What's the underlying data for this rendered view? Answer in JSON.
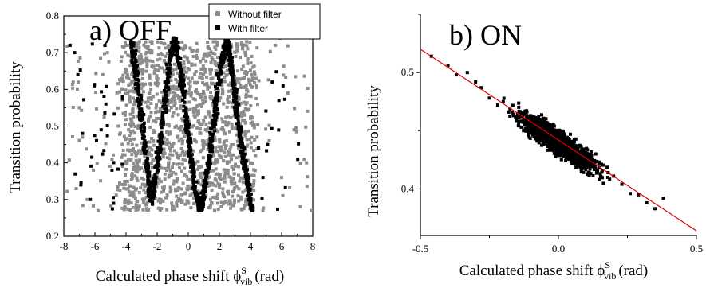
{
  "chart_data": [
    {
      "type": "scatter",
      "panel_label": "a) OFF",
      "xlabel": "Calculated phase shift ϕ",
      "xlabel_sup": "S",
      "xlabel_sub": "vib",
      "xlabel_unit": "(rad)",
      "ylabel": "Transition probability",
      "xlim": [
        -8,
        8
      ],
      "ylim": [
        0.2,
        0.8
      ],
      "xticks": [
        "-8",
        "-6",
        "-4",
        "-2",
        "0",
        "2",
        "4",
        "6",
        "8"
      ],
      "yticks": [
        "0.2",
        "0.3",
        "0.4",
        "0.5",
        "0.6",
        "0.7",
        "0.8"
      ],
      "legend_position": "top-right",
      "series": [
        {
          "name": "Without filter",
          "color": "#8c8c8c",
          "marker": "square",
          "description_points": [
            [
              -7.6,
              0.72
            ],
            [
              -7.4,
              0.62
            ],
            [
              -7.0,
              0.55
            ],
            [
              -6.8,
              0.47
            ],
            [
              -7.2,
              0.33
            ],
            [
              -6.5,
              0.3
            ],
            [
              -6.1,
              0.38
            ],
            [
              -5.8,
              0.27
            ],
            [
              -5.5,
              0.64
            ],
            [
              -5.2,
              0.7
            ],
            [
              -4.9,
              0.41
            ],
            [
              -4.5,
              0.5
            ],
            [
              -4.2,
              0.6
            ],
            [
              -3.9,
              0.35
            ],
            [
              -3.6,
              0.45
            ],
            [
              -3.2,
              0.55
            ],
            [
              -2.8,
              0.68
            ],
            [
              -2.4,
              0.32
            ],
            [
              -2.0,
              0.42
            ],
            [
              -1.6,
              0.58
            ],
            [
              -1.2,
              0.71
            ],
            [
              -0.8,
              0.37
            ],
            [
              -0.4,
              0.52
            ],
            [
              0.0,
              0.63
            ],
            [
              0.4,
              0.29
            ],
            [
              0.8,
              0.48
            ],
            [
              1.2,
              0.69
            ],
            [
              1.6,
              0.34
            ],
            [
              2.0,
              0.57
            ],
            [
              2.4,
              0.44
            ],
            [
              2.8,
              0.66
            ],
            [
              3.2,
              0.31
            ],
            [
              3.6,
              0.53
            ],
            [
              4.0,
              0.4
            ],
            [
              4.4,
              0.61
            ],
            [
              4.8,
              0.27
            ],
            [
              5.2,
              0.46
            ],
            [
              5.6,
              0.72
            ],
            [
              6.0,
              0.36
            ],
            [
              6.4,
              0.59
            ],
            [
              6.8,
              0.49
            ],
            [
              7.2,
              0.28
            ],
            [
              7.6,
              0.4
            ],
            [
              7.9,
              0.27
            ]
          ]
        },
        {
          "name": "With filter",
          "color": "#000000",
          "marker": "square",
          "description_points": [
            [
              -7.6,
              0.72
            ],
            [
              -7.1,
              0.64
            ],
            [
              -6.8,
              0.48
            ],
            [
              -6.9,
              0.34
            ],
            [
              -6.3,
              0.3
            ],
            [
              -5.6,
              0.49
            ],
            [
              -5.3,
              0.56
            ],
            [
              -4.9,
              0.38
            ],
            [
              -4.8,
              0.29
            ],
            [
              4.8,
              0.36
            ],
            [
              5.1,
              0.45
            ],
            [
              5.4,
              0.62
            ],
            [
              5.9,
              0.74
            ]
          ]
        }
      ],
      "curve_with_filter": {
        "description": "cosine-shaped band of dense black points",
        "x": [
          -3.6,
          -3.0,
          -2.4,
          -1.8,
          -1.2,
          -0.8,
          -0.2,
          0.4,
          0.8,
          1.4,
          2.0,
          2.5,
          3.0,
          3.6,
          4.1
        ],
        "y": [
          0.73,
          0.52,
          0.29,
          0.45,
          0.68,
          0.74,
          0.55,
          0.33,
          0.27,
          0.42,
          0.64,
          0.74,
          0.58,
          0.4,
          0.27
        ]
      }
    },
    {
      "type": "scatter",
      "panel_label": "b) ON",
      "xlabel": "Calculated phase shift ϕ",
      "xlabel_sup": "S",
      "xlabel_sub": "vib",
      "xlabel_unit": "(rad)",
      "ylabel": "Transition probability",
      "xlim": [
        -0.5,
        0.5
      ],
      "ylim": [
        0.36,
        0.55
      ],
      "xticks": [
        "-0.5",
        "0.0",
        "0.5"
      ],
      "yticks": [
        "0.4",
        "0.5"
      ],
      "series": [
        {
          "color": "#000000",
          "marker": "square",
          "description_points": [
            [
              -0.46,
              0.514
            ],
            [
              -0.4,
              0.506
            ],
            [
              -0.37,
              0.498
            ],
            [
              -0.33,
              0.5
            ],
            [
              -0.3,
              0.492
            ],
            [
              -0.28,
              0.487
            ],
            [
              -0.25,
              0.478
            ],
            [
              -0.22,
              0.472
            ],
            [
              -0.2,
              0.475
            ],
            [
              -0.18,
              0.466
            ],
            [
              -0.15,
              0.462
            ],
            [
              -0.12,
              0.466
            ],
            [
              -0.1,
              0.456
            ],
            [
              -0.08,
              0.452
            ],
            [
              -0.05,
              0.448
            ],
            [
              -0.02,
              0.451
            ],
            [
              0.0,
              0.442
            ],
            [
              0.02,
              0.444
            ],
            [
              0.05,
              0.436
            ],
            [
              0.08,
              0.432
            ],
            [
              0.1,
              0.426
            ],
            [
              0.12,
              0.429
            ],
            [
              0.15,
              0.418
            ],
            [
              0.18,
              0.414
            ],
            [
              0.2,
              0.411
            ],
            [
              0.23,
              0.404
            ],
            [
              0.26,
              0.396
            ],
            [
              0.29,
              0.395
            ],
            [
              0.32,
              0.388
            ],
            [
              0.35,
              0.383
            ],
            [
              0.38,
              0.392
            ]
          ]
        }
      ],
      "fit_line": {
        "color": "#e00000",
        "x": [
          -0.5,
          0.5
        ],
        "y": [
          0.52,
          0.364
        ]
      },
      "cloud": {
        "center_x": 0.0,
        "center_y": 0.44,
        "slope": -0.156,
        "spread_x": 0.13,
        "spread_y": 0.01
      }
    }
  ]
}
